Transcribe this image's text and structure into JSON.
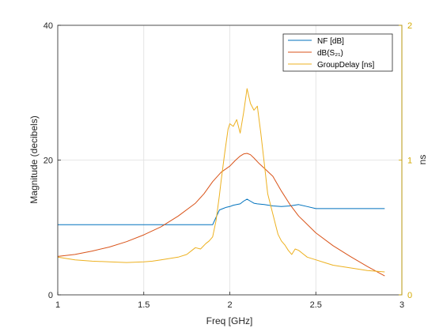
{
  "chart_data": {
    "type": "line",
    "xlabel": "Freq [GHz]",
    "ylabel_left": "Magnitude (decibels)",
    "ylabel_right": "ns",
    "xlim": [
      1,
      3
    ],
    "ylim_left": [
      0,
      40
    ],
    "ylim_right": [
      0,
      2
    ],
    "x_ticks": [
      1,
      1.5,
      2,
      2.5,
      3
    ],
    "x_tick_labels": [
      "1",
      "1.5",
      "2",
      "2.5",
      "3"
    ],
    "y_left_ticks": [
      0,
      20,
      40
    ],
    "y_left_tick_labels": [
      "0",
      "20",
      "40"
    ],
    "y_right_ticks": [
      0,
      1,
      2
    ],
    "y_right_tick_labels": [
      "0",
      "1",
      "2"
    ],
    "grid": true,
    "legend_placement": "top-right",
    "right_axis_color": "#d4aa00",
    "series": [
      {
        "name": "NF [dB]",
        "color": "#0072bd",
        "axis": "left",
        "x": [
          1.0,
          1.1,
          1.2,
          1.3,
          1.4,
          1.5,
          1.6,
          1.7,
          1.8,
          1.9,
          1.92,
          1.94,
          1.96,
          1.98,
          2.0,
          2.02,
          2.04,
          2.06,
          2.08,
          2.1,
          2.12,
          2.14,
          2.16,
          2.2,
          2.25,
          2.3,
          2.35,
          2.4,
          2.45,
          2.5,
          2.6,
          2.7,
          2.8,
          2.9
        ],
        "values": [
          10.4,
          10.4,
          10.4,
          10.4,
          10.4,
          10.4,
          10.4,
          10.4,
          10.4,
          10.4,
          11.5,
          12.6,
          12.8,
          13.0,
          13.1,
          13.3,
          13.4,
          13.5,
          13.9,
          14.2,
          13.9,
          13.6,
          13.5,
          13.4,
          13.2,
          13.1,
          13.2,
          13.4,
          13.1,
          12.8,
          12.8,
          12.8,
          12.8,
          12.8
        ]
      },
      {
        "name": "dB(S₂₁)",
        "color": "#d95319",
        "axis": "left",
        "x": [
          1.0,
          1.1,
          1.2,
          1.3,
          1.4,
          1.5,
          1.6,
          1.7,
          1.8,
          1.85,
          1.9,
          1.95,
          2.0,
          2.03,
          2.06,
          2.08,
          2.1,
          2.12,
          2.14,
          2.17,
          2.2,
          2.25,
          2.3,
          2.35,
          2.4,
          2.5,
          2.6,
          2.7,
          2.8,
          2.9
        ],
        "values": [
          5.7,
          6.0,
          6.5,
          7.1,
          7.9,
          8.9,
          10.1,
          11.7,
          13.6,
          15.0,
          16.8,
          18.2,
          19.1,
          19.9,
          20.6,
          20.9,
          21.0,
          20.8,
          20.3,
          19.5,
          18.8,
          17.6,
          15.4,
          13.4,
          11.7,
          9.2,
          7.3,
          5.7,
          4.2,
          2.8
        ]
      },
      {
        "name": "GroupDelay [ns]",
        "color": "#edb120",
        "axis": "right",
        "x": [
          1.0,
          1.1,
          1.2,
          1.3,
          1.4,
          1.5,
          1.55,
          1.6,
          1.65,
          1.7,
          1.75,
          1.78,
          1.8,
          1.83,
          1.86,
          1.88,
          1.9,
          1.92,
          1.94,
          1.95,
          1.97,
          1.99,
          2.0,
          2.02,
          2.04,
          2.06,
          2.08,
          2.1,
          2.12,
          2.14,
          2.16,
          2.18,
          2.2,
          2.22,
          2.25,
          2.27,
          2.28,
          2.3,
          2.32,
          2.34,
          2.36,
          2.38,
          2.4,
          2.45,
          2.5,
          2.55,
          2.6,
          2.7,
          2.8,
          2.9
        ],
        "values": [
          0.28,
          0.26,
          0.25,
          0.245,
          0.24,
          0.245,
          0.25,
          0.26,
          0.27,
          0.28,
          0.3,
          0.33,
          0.35,
          0.34,
          0.38,
          0.4,
          0.43,
          0.55,
          0.74,
          0.85,
          1.05,
          1.23,
          1.27,
          1.25,
          1.3,
          1.2,
          1.35,
          1.53,
          1.42,
          1.37,
          1.4,
          1.2,
          0.98,
          0.75,
          0.6,
          0.5,
          0.45,
          0.4,
          0.37,
          0.33,
          0.3,
          0.34,
          0.33,
          0.28,
          0.26,
          0.24,
          0.22,
          0.2,
          0.18,
          0.17
        ]
      }
    ]
  }
}
